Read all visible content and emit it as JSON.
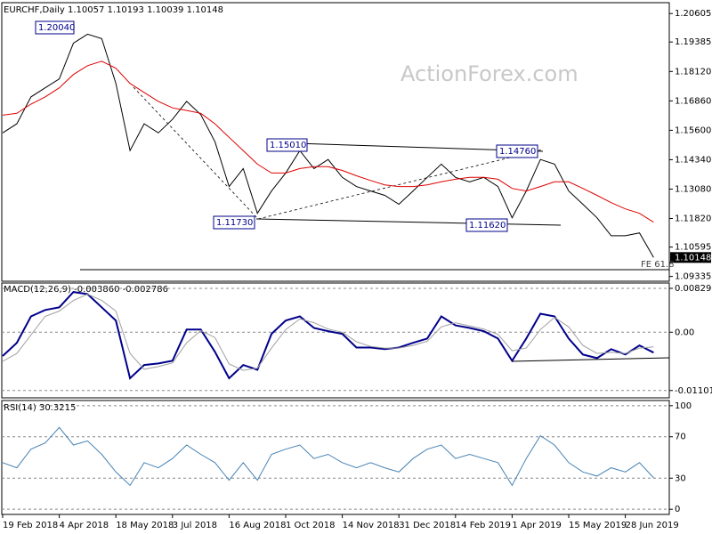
{
  "chart_data": [
    {
      "type": "line",
      "title": "EURCHF,Daily  1.10057 1.10193 1.10039 1.10148",
      "watermark": "ActionForex.com",
      "categories": [
        "19 Feb 2018",
        null,
        null,
        null,
        "4 Apr 2018",
        null,
        null,
        null,
        "18 May 2018",
        null,
        null,
        null,
        "3 Jul 2018",
        null,
        null,
        null,
        "16 Aug 2018",
        null,
        null,
        null,
        "1 Oct 2018",
        null,
        null,
        null,
        "14 Nov 2018",
        null,
        null,
        null,
        "31 Dec 2018",
        null,
        null,
        null,
        "14 Feb 2019",
        null,
        null,
        null,
        "1 Apr 2019",
        null,
        null,
        null,
        "15 May 2019",
        null,
        null,
        null,
        "28 Jun 2019",
        null,
        null
      ],
      "series": [
        {
          "color": "#000000",
          "values": [
            1.1549,
            1.1588,
            1.1703,
            1.1742,
            1.178,
            1.1934,
            1.1972,
            1.1953,
            1.1761,
            1.1473,
            1.1588,
            1.1549,
            1.1607,
            1.1684,
            1.1627,
            1.1511,
            1.1319,
            1.1396,
            1.1204,
            1.13,
            1.1377,
            1.1473,
            1.1396,
            1.1435,
            1.1358,
            1.1319,
            1.13,
            1.1281,
            1.1243,
            1.13,
            1.1358,
            1.1415,
            1.1358,
            1.1339,
            1.1358,
            1.1319,
            1.1185,
            1.13,
            1.1435,
            1.1415,
            1.13,
            1.1243,
            1.1185,
            1.1108,
            1.1108,
            1.112,
            1.10148
          ]
        },
        {
          "color": "#e00000",
          "values": [
            1.1625,
            1.1633,
            1.1672,
            1.1703,
            1.1742,
            1.1799,
            1.1837,
            1.1856,
            1.1826,
            1.1761,
            1.1722,
            1.1684,
            1.1656,
            1.1645,
            1.1633,
            1.1588,
            1.153,
            1.1473,
            1.1415,
            1.1377,
            1.1377,
            1.1396,
            1.1404,
            1.1404,
            1.1388,
            1.1365,
            1.1345,
            1.1326,
            1.1319,
            1.1319,
            1.1326,
            1.1339,
            1.135,
            1.1358,
            1.1358,
            1.135,
            1.1311,
            1.13,
            1.1319,
            1.1339,
            1.1339,
            1.1311,
            1.1281,
            1.125,
            1.1223,
            1.1204,
            1.1166
          ]
        }
      ],
      "annotations": [
        "1.20040",
        "1.15010",
        "1.14760",
        "1.11730",
        "1.11620",
        "FE 61.8"
      ],
      "last_value_label": true,
      "ylim": [
        1.0913,
        1.2107
      ],
      "yticks": [
        1.20605,
        1.19385,
        {
          "value": 1.1812,
          "label": "1.18120"
        },
        {
          "value": 1.1686,
          "label": "1.16860"
        },
        {
          "value": 1.156,
          "label": "1.15600"
        },
        {
          "value": 1.1434,
          "label": "1.14340"
        },
        {
          "value": 1.1308,
          "label": "1.13080"
        },
        {
          "value": 1.1182,
          "label": "1.11820"
        },
        1.10595,
        1.09335
      ]
    },
    {
      "type": "line",
      "title": "MACD(12,26,9) -0.003860 -0.002786",
      "series": [
        {
          "color": "#00008b",
          "values": [
            -0.0045,
            -0.002,
            0.003,
            0.0042,
            0.0047,
            0.0076,
            0.0072,
            0.0047,
            0.0022,
            -0.0087,
            -0.0062,
            -0.0059,
            -0.0054,
            0.0005,
            0.0005,
            -0.0037,
            -0.0087,
            -0.0062,
            -0.0071,
            -0.0003,
            0.0022,
            0.003,
            0.0008,
            0.0002,
            -0.0003,
            -0.0029,
            -0.0029,
            -0.0032,
            -0.0029,
            -0.002,
            -0.0012,
            0.003,
            0.0013,
            0.0008,
            0.0002,
            -0.0012,
            -0.0054,
            -0.0012,
            0.0035,
            0.003,
            -0.0012,
            -0.0042,
            -0.0049,
            -0.0032,
            -0.0042,
            -0.0025,
            -0.00386
          ]
        },
        {
          "color": "#a0a0a0",
          "values": [
            -0.0055,
            -0.004,
            -0.0005,
            0.003,
            0.004,
            0.006,
            0.0072,
            0.006,
            0.004,
            -0.004,
            -0.007,
            -0.0065,
            -0.0058,
            -0.002,
            0.0003,
            -0.001,
            -0.006,
            -0.0072,
            -0.0068,
            -0.003,
            0.0005,
            0.0025,
            0.0018,
            0.0006,
            0.0,
            -0.0018,
            -0.0027,
            -0.003,
            -0.003,
            -0.0025,
            -0.0017,
            0.001,
            0.0018,
            0.0012,
            0.0006,
            -0.0004,
            -0.0035,
            -0.003,
            0.0005,
            0.0028,
            0.001,
            -0.0025,
            -0.004,
            -0.0038,
            -0.004,
            -0.003,
            -0.002786
          ]
        }
      ],
      "grid": true,
      "ylim": [
        -0.0124,
        0.0093
      ],
      "yticks": [
        0.008292,
        {
          "value": 0,
          "label": "0.00"
        },
        -0.011015
      ]
    },
    {
      "type": "line",
      "title": "RSI(14) 30.3215",
      "series": [
        {
          "color": "#4682b4",
          "values": [
            45,
            40,
            58,
            64,
            79,
            62,
            66,
            53,
            36,
            23,
            45,
            40,
            49,
            62,
            53,
            45,
            28,
            45,
            28,
            53,
            58,
            62,
            49,
            53,
            45,
            40,
            45,
            40,
            36,
            49,
            58,
            62,
            49,
            53,
            49,
            45,
            23,
            49,
            71,
            62,
            45,
            36,
            32,
            40,
            36,
            45,
            30.3215
          ]
        }
      ],
      "grid": true,
      "ylim": [
        -5,
        105
      ],
      "yticks": [
        100,
        70,
        30,
        0
      ]
    }
  ]
}
